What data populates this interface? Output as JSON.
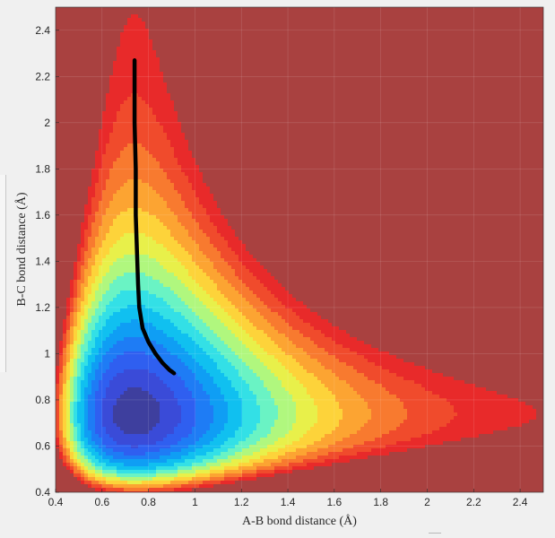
{
  "chart_data": {
    "type": "contour",
    "title": "",
    "xlabel": "A-B bond distance (Å)",
    "ylabel": "B-C bond distance (Å)",
    "xlim": [
      0.4,
      2.5
    ],
    "ylim": [
      0.4,
      2.5
    ],
    "xticks": [
      0.4,
      0.6,
      0.8,
      1,
      1.2,
      1.4,
      1.6,
      1.8,
      2,
      2.2,
      2.4
    ],
    "yticks": [
      0.4,
      0.6,
      0.8,
      1,
      1.2,
      1.4,
      1.6,
      1.8,
      2,
      2.2,
      2.4
    ],
    "xticklabels": [
      "0.4",
      "0.6",
      "0.8",
      "1",
      "1.2",
      "1.4",
      "1.6",
      "1.8",
      "2",
      "2.2",
      "2.4"
    ],
    "yticklabels": [
      "0.4",
      "0.6",
      "0.8",
      "1",
      "1.2",
      "1.4",
      "1.6",
      "1.8",
      "2",
      "2.2",
      "2.4"
    ],
    "grid": true,
    "colormap": "jet",
    "trajectory": {
      "x": [
        0.74,
        0.74,
        0.745,
        0.745,
        0.75,
        0.755,
        0.76,
        0.775,
        0.8,
        0.83,
        0.86,
        0.89,
        0.91
      ],
      "y": [
        2.27,
        2.0,
        1.8,
        1.6,
        1.45,
        1.3,
        1.2,
        1.11,
        1.05,
        1.0,
        0.96,
        0.93,
        0.915
      ],
      "color": "#000000"
    }
  }
}
